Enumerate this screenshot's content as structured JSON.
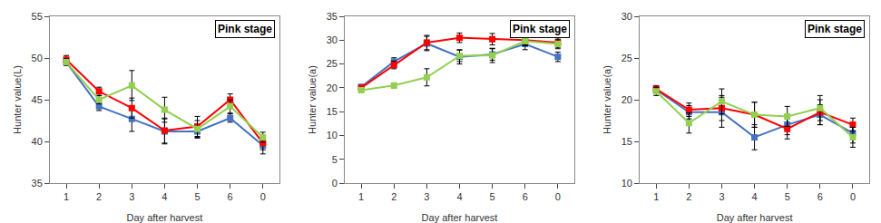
{
  "chart_data": [
    {
      "type": "line",
      "xlabel": "Day after harvest",
      "ylabel": "Hunter value(L)",
      "categories": [
        "1",
        "2",
        "3",
        "4",
        "5",
        "6",
        "0"
      ],
      "ylim": [
        35,
        55
      ],
      "yticks": [
        35,
        40,
        45,
        50,
        55
      ],
      "grid": false,
      "annotations": [
        "Pink stage"
      ],
      "series": [
        {
          "color": "#4472C4",
          "marker": "square",
          "values": [
            49.5,
            44.2,
            42.7,
            41.2,
            41.2,
            42.8,
            39.5
          ],
          "yerr": [
            0.3,
            0.5,
            1.5,
            1.5,
            0.8,
            0.5,
            1.0
          ]
        },
        {
          "color": "#FF0000",
          "marker": "square",
          "values": [
            49.8,
            46.0,
            44.0,
            41.3,
            41.8,
            45.0,
            39.8
          ],
          "yerr": [
            0.5,
            0.5,
            1.2,
            1.5,
            1.2,
            0.7,
            0.8
          ]
        },
        {
          "color": "#92D050",
          "marker": "square",
          "values": [
            49.5,
            45.0,
            46.7,
            43.8,
            41.5,
            44.2,
            40.5
          ],
          "yerr": [
            0.4,
            0.5,
            1.8,
            1.5,
            1.0,
            0.8,
            0.6
          ]
        }
      ]
    },
    {
      "type": "line",
      "xlabel": "Day after harvest",
      "ylabel": "Hunter value(a)",
      "categories": [
        "1",
        "2",
        "3",
        "4",
        "5",
        "6",
        "0"
      ],
      "ylim": [
        0,
        35
      ],
      "yticks": [
        0,
        5,
        10,
        15,
        20,
        25,
        30,
        35
      ],
      "grid": false,
      "annotations": [
        "Pink stage"
      ],
      "series": [
        {
          "color": "#4472C4",
          "marker": "square",
          "values": [
            20.2,
            25.5,
            29.3,
            26.5,
            27.0,
            29.2,
            26.5
          ],
          "yerr": [
            0.4,
            0.8,
            1.5,
            1.5,
            1.2,
            1.2,
            1.0
          ]
        },
        {
          "color": "#FF0000",
          "marker": "square",
          "values": [
            20.0,
            24.8,
            29.5,
            30.5,
            30.2,
            30.0,
            29.5
          ],
          "yerr": [
            0.5,
            0.8,
            1.5,
            1.0,
            1.2,
            1.2,
            1.0
          ]
        },
        {
          "color": "#92D050",
          "marker": "square",
          "values": [
            19.5,
            20.5,
            22.2,
            26.7,
            26.8,
            29.8,
            29.2
          ],
          "yerr": [
            0.5,
            0.5,
            1.8,
            1.2,
            1.5,
            0.8,
            1.0
          ]
        }
      ]
    },
    {
      "type": "line",
      "xlabel": "Day after harvest",
      "ylabel": "Hunter value(a)",
      "categories": [
        "1",
        "2",
        "3",
        "4",
        "5",
        "6",
        "0"
      ],
      "ylim": [
        10,
        30
      ],
      "yticks": [
        10,
        15,
        20,
        25,
        30
      ],
      "grid": false,
      "annotations": [
        "Pink stage"
      ],
      "series": [
        {
          "color": "#4472C4",
          "marker": "square",
          "values": [
            21.2,
            18.5,
            18.5,
            15.5,
            17.0,
            18.2,
            16.0
          ],
          "yerr": [
            0.3,
            0.8,
            1.8,
            1.5,
            1.2,
            1.2,
            1.2
          ]
        },
        {
          "color": "#FF0000",
          "marker": "square",
          "values": [
            21.3,
            18.8,
            19.0,
            18.2,
            16.5,
            18.5,
            17.0
          ],
          "yerr": [
            0.4,
            0.8,
            1.5,
            1.5,
            1.2,
            1.5,
            0.8
          ]
        },
        {
          "color": "#92D050",
          "marker": "square",
          "values": [
            21.0,
            17.2,
            19.8,
            18.2,
            18.0,
            19.0,
            15.5
          ],
          "yerr": [
            0.5,
            1.2,
            1.5,
            1.5,
            1.2,
            1.5,
            1.2
          ]
        }
      ]
    }
  ]
}
